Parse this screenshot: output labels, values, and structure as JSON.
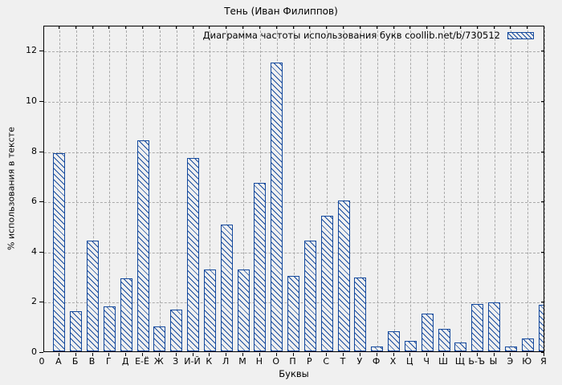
{
  "figure": {
    "title": "Тень (Иван Филиппов)",
    "legend_label": "Диаграмма частоты использования букв coollib.net/b/730512",
    "xlabel": "Буквы",
    "ylabel": "% использования в тексте",
    "origin_label": "0"
  },
  "colors": {
    "background": "#f0f0f0",
    "bar_stroke": "#14499d",
    "grid": "#aaaaaa",
    "axis": "#000000"
  },
  "chart_data": {
    "type": "bar",
    "title": "Тень (Иван Филиппов)",
    "legend": [
      "Диаграмма частоты использования букв coollib.net/b/730512"
    ],
    "legend_position": "top-right-inside",
    "xlabel": "Буквы",
    "ylabel": "% использования в тексте",
    "ylim": [
      0,
      13
    ],
    "yticks": [
      0,
      2,
      4,
      6,
      8,
      10,
      12
    ],
    "grid": true,
    "bar_style": "blue-diagonal-hatch",
    "categories": [
      "А",
      "Б",
      "В",
      "Г",
      "Д",
      "Е-Ё",
      "Ж",
      "З",
      "И-Й",
      "К",
      "Л",
      "М",
      "Н",
      "О",
      "П",
      "Р",
      "С",
      "Т",
      "У",
      "Ф",
      "Х",
      "Ц",
      "Ч",
      "Ш",
      "Щ",
      "Ь-Ъ",
      "Ы",
      "Э",
      "Ю",
      "Я"
    ],
    "values": [
      7.9,
      1.6,
      4.4,
      1.8,
      2.9,
      8.4,
      1.0,
      1.65,
      7.7,
      3.25,
      5.05,
      3.25,
      6.7,
      11.5,
      3.0,
      4.4,
      5.4,
      6.0,
      2.95,
      0.2,
      0.8,
      0.4,
      1.5,
      0.9,
      0.35,
      1.9,
      1.95,
      0.2,
      0.5,
      1.85
    ]
  }
}
